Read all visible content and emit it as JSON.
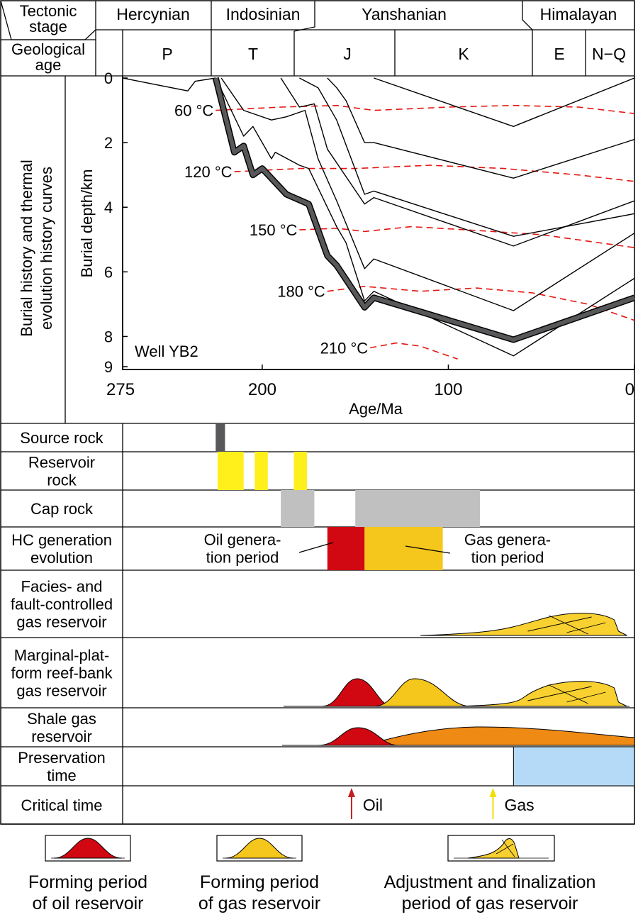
{
  "header": {
    "tectonic_label": [
      "Tectonic",
      "stage"
    ],
    "age_label": [
      "Geological",
      "age"
    ],
    "stages": [
      "Hercynian",
      "Indosinian",
      "Yanshanian",
      "Himalayan"
    ],
    "periods": [
      "P",
      "T",
      "J",
      "K",
      "E",
      "N−Q"
    ]
  },
  "chart_data": {
    "type": "line",
    "side_title": [
      "Burial history and thermal",
      "evolution history curves"
    ],
    "ylabel": "Burial depth/km",
    "xlabel": "Age/Ma",
    "well_label": "Well YB2",
    "xlim": [
      275,
      0
    ],
    "ylim": [
      0,
      9
    ],
    "x_ticks": [
      "275",
      "200",
      "100",
      "0"
    ],
    "x_tick_values": [
      275,
      200,
      100,
      0
    ],
    "y_ticks": [
      "0",
      "2",
      "4",
      "6",
      "8",
      "9"
    ],
    "y_tick_values": [
      0,
      2,
      4,
      6,
      8,
      9
    ],
    "burial_curves": [
      {
        "points": [
          [
            275,
            0
          ],
          [
            240,
            0.4
          ],
          [
            236,
            0.1
          ],
          [
            225,
            0
          ]
        ]
      },
      {
        "points": [
          [
            225,
            0
          ],
          [
            210,
            1.8
          ],
          [
            205,
            1.5
          ],
          [
            195,
            2.5
          ],
          [
            193,
            2.3
          ],
          [
            180,
            2.7
          ],
          [
            175,
            2.8
          ],
          [
            160,
            4.6
          ],
          [
            155,
            5.1
          ],
          [
            145,
            6.9
          ],
          [
            140,
            6.6
          ],
          [
            65,
            8.6
          ],
          [
            0,
            6.2
          ]
        ]
      },
      {
        "points": [
          [
            222,
            0
          ],
          [
            210,
            1.0
          ],
          [
            195,
            1.3
          ],
          [
            187,
            1.2
          ],
          [
            177,
            1.0
          ],
          [
            170,
            2.5
          ],
          [
            160,
            3.8
          ],
          [
            145,
            5.9
          ],
          [
            140,
            5.6
          ],
          [
            65,
            7.2
          ],
          [
            0,
            4.8
          ]
        ]
      },
      {
        "points": [
          [
            190,
            0
          ],
          [
            180,
            0.9
          ],
          [
            172,
            0.8
          ],
          [
            165,
            2.2
          ],
          [
            145,
            3.9
          ],
          [
            140,
            3.7
          ],
          [
            65,
            5.2
          ],
          [
            0,
            3.8
          ]
        ]
      },
      {
        "points": [
          [
            180,
            0
          ],
          [
            170,
            0.3
          ],
          [
            160,
            1.3
          ],
          [
            145,
            3.6
          ],
          [
            140,
            3.5
          ],
          [
            65,
            4.9
          ],
          [
            0,
            4.2
          ]
        ]
      },
      {
        "points": [
          [
            165,
            0
          ],
          [
            160,
            0.3
          ],
          [
            155,
            0.7
          ],
          [
            145,
            2.0
          ],
          [
            140,
            2.0
          ],
          [
            65,
            3.1
          ],
          [
            0,
            1.9
          ]
        ]
      },
      {
        "points": [
          [
            140,
            0
          ],
          [
            65,
            1.5
          ],
          [
            0,
            0
          ]
        ]
      }
    ],
    "source_rock_curve": {
      "points": [
        [
          225,
          0
        ],
        [
          215,
          2.3
        ],
        [
          210,
          2.1
        ],
        [
          205,
          3.0
        ],
        [
          200,
          2.8
        ],
        [
          187,
          3.6
        ],
        [
          175,
          3.9
        ],
        [
          165,
          5.5
        ],
        [
          160,
          5.8
        ],
        [
          145,
          7.1
        ],
        [
          140,
          6.8
        ],
        [
          65,
          8.1
        ],
        [
          0,
          6.8
        ]
      ]
    },
    "isotherms": [
      {
        "label": "60 °C",
        "points": [
          [
            225,
            1.0
          ],
          [
            190,
            0.9
          ],
          [
            160,
            0.85
          ],
          [
            140,
            1.0
          ],
          [
            100,
            0.9
          ],
          [
            65,
            0.85
          ],
          [
            30,
            0.9
          ],
          [
            0,
            1.1
          ]
        ]
      },
      {
        "label": "120 °C",
        "points": [
          [
            215,
            2.9
          ],
          [
            180,
            2.8
          ],
          [
            150,
            2.8
          ],
          [
            110,
            2.7
          ],
          [
            70,
            2.8
          ],
          [
            30,
            3.0
          ],
          [
            0,
            3.2
          ]
        ]
      },
      {
        "label": "150 °C",
        "points": [
          [
            180,
            4.7
          ],
          [
            160,
            4.65
          ],
          [
            145,
            4.75
          ],
          [
            120,
            4.6
          ],
          [
            90,
            4.7
          ],
          [
            50,
            4.85
          ],
          [
            0,
            5.25
          ]
        ]
      },
      {
        "label": "180 °C",
        "points": [
          [
            165,
            6.6
          ],
          [
            145,
            6.45
          ],
          [
            115,
            6.6
          ],
          [
            85,
            6.5
          ],
          [
            55,
            6.65
          ],
          [
            25,
            7.0
          ],
          [
            0,
            7.5
          ]
        ]
      },
      {
        "label": "210 °C",
        "points": [
          [
            142,
            8.35
          ],
          [
            128,
            8.2
          ],
          [
            115,
            8.3
          ],
          [
            100,
            8.6
          ],
          [
            95,
            8.7
          ]
        ]
      }
    ]
  },
  "events": {
    "rows": [
      {
        "label": [
          "Source rock"
        ]
      },
      {
        "label": [
          "Reservoir",
          "rock"
        ]
      },
      {
        "label": [
          "Cap rock"
        ]
      },
      {
        "label": [
          "HC generation",
          "evolution"
        ]
      },
      {
        "label": [
          "Facies- and",
          "fault-controlled",
          "gas reservoir"
        ]
      },
      {
        "label": [
          "Marginal-plat-",
          "form reef-bank",
          "gas reservoir"
        ]
      },
      {
        "label": [
          "Shale gas",
          "reservoir"
        ]
      },
      {
        "label": [
          "Preservation",
          "time"
        ]
      },
      {
        "label": [
          "Critical time"
        ]
      }
    ],
    "source_rock": [
      [
        225,
        220
      ]
    ],
    "reservoir_rock": [
      [
        224,
        210
      ],
      [
        204,
        197
      ],
      [
        183,
        176
      ]
    ],
    "cap_rock": [
      [
        190,
        172
      ],
      [
        150,
        83
      ]
    ],
    "oil_generation": [
      165,
      145
    ],
    "gas_generation": [
      145,
      103
    ],
    "oil_generation_label": [
      "Oil genera-",
      "tion period"
    ],
    "gas_generation_label": [
      "Gas genera-",
      "tion period"
    ],
    "preservation_start": 65,
    "critical_oil_label": "Oil",
    "critical_oil_age": 152,
    "critical_gas_label": "Gas",
    "critical_gas_age": 76
  },
  "colors": {
    "oil": "#d10812",
    "gas": "#f5c61b",
    "gas_light": "#f8d030",
    "shale_gas": "#ef8a14",
    "source_rock": "#58585a",
    "reservoir_rock": "#ffef1a",
    "cap_rock": "#c0c0c0",
    "preservation": "#b5daf7",
    "isotherm": "#e3150f",
    "critical_oil": "#c41e1e",
    "critical_gas": "#f0e000"
  },
  "legend": [
    {
      "kind": "oil",
      "label": [
        "Forming period",
        "of oil reservoir"
      ]
    },
    {
      "kind": "gas",
      "label": [
        "Forming period",
        "of gas reservoir"
      ]
    },
    {
      "kind": "adjust",
      "label": [
        "Adjustment and finalization",
        "period of gas reservoir"
      ]
    }
  ]
}
